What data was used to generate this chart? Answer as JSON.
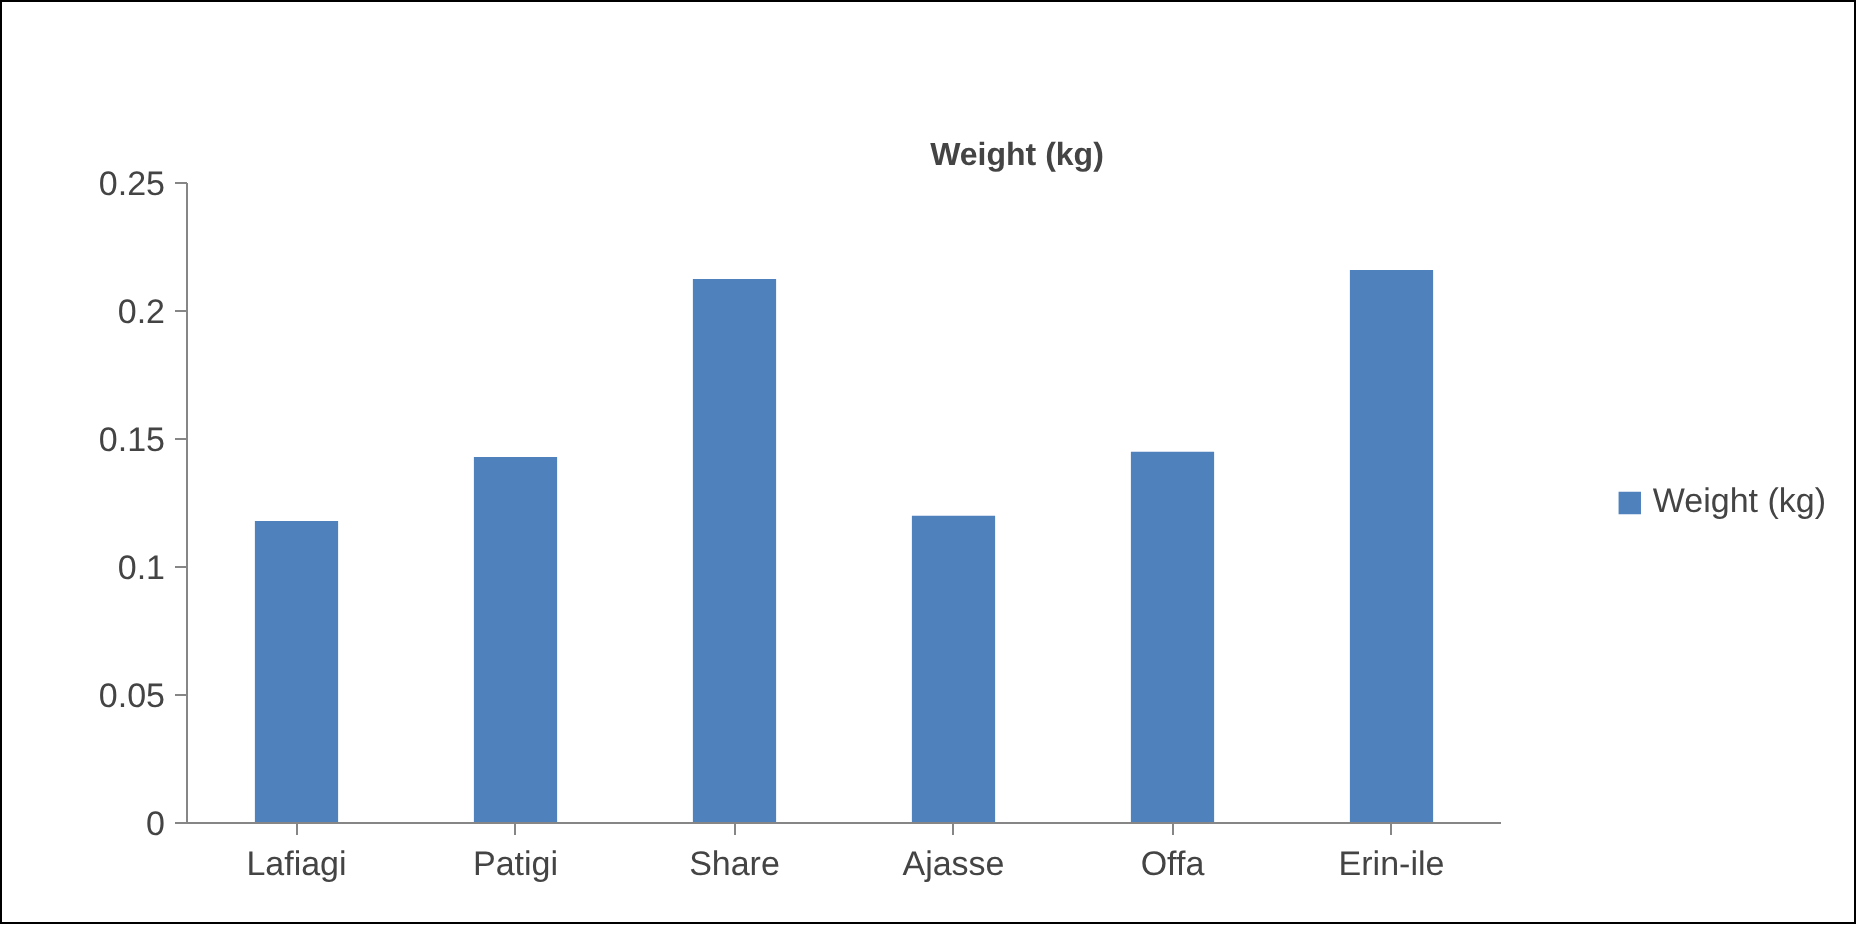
{
  "chart_data": {
    "type": "bar",
    "title": "Weight (kg)",
    "categories": [
      "Lafiagi",
      "Patigi",
      "Share",
      "Ajasse",
      "Offa",
      "Erin-ile"
    ],
    "series": [
      {
        "name": "Weight (kg)",
        "color": "#4f81bd",
        "values": [
          0.118,
          0.143,
          0.2125,
          0.12,
          0.145,
          0.216
        ]
      }
    ],
    "ylim": [
      0,
      0.25
    ],
    "yticks": [
      0,
      0.05,
      0.1,
      0.15,
      0.2,
      0.25
    ],
    "grid": false,
    "legend": "right"
  }
}
